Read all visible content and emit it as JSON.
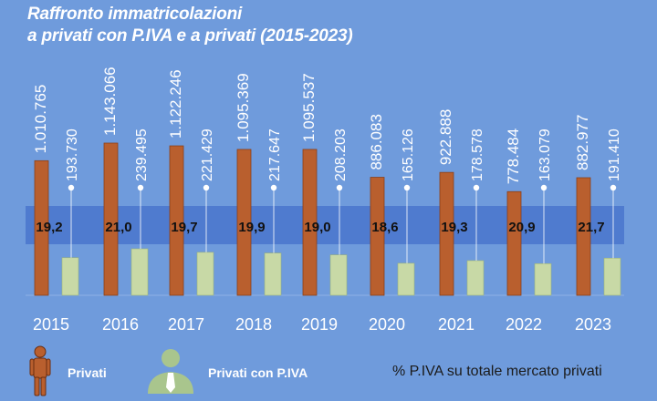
{
  "title": {
    "line1": "Raffronto immatricolazioni",
    "line2": "a privati con P.IVA e a privati (2015-2023)"
  },
  "colors": {
    "background": "#6f9bdc",
    "band": "#4f7bcf",
    "privati": "#b95f2e",
    "piva": "#c8d9a6",
    "avatar_piva": "#a9c58d",
    "text_white": "#ffffff",
    "text_dark": "#1b1b1b"
  },
  "chart_data": {
    "type": "bar",
    "title": "Raffronto immatricolazioni a privati con P.IVA e a privati (2015-2023)",
    "categories": [
      "2015",
      "2016",
      "2017",
      "2018",
      "2019",
      "2020",
      "2021",
      "2022",
      "2023"
    ],
    "series": [
      {
        "name": "Privati",
        "values": [
          1010765,
          1143066,
          1122246,
          1095369,
          1095537,
          886083,
          922888,
          778484,
          882977
        ],
        "labels": [
          "1.010.765",
          "1.143.066",
          "1.122.246",
          "1.095.369",
          "1.095.537",
          "886.083",
          "922.888",
          "778.484",
          "882.977"
        ]
      },
      {
        "name": "Privati con P.IVA",
        "values": [
          193730,
          239495,
          221429,
          217647,
          208203,
          165126,
          178578,
          163079,
          191410
        ],
        "labels": [
          "193.730",
          "239.495",
          "221.429",
          "217.647",
          "208.203",
          "165.126",
          "178.578",
          "163.079",
          "191.410"
        ]
      }
    ],
    "percent_series": {
      "name": "% P.IVA su totale mercato privati",
      "values": [
        19.2,
        21.0,
        19.7,
        19.9,
        19.0,
        18.6,
        19.3,
        20.9,
        21.7
      ],
      "labels": [
        "19,2",
        "21,0",
        "19,7",
        "19,9",
        "19,0",
        "18,6",
        "19,3",
        "20,9",
        "21,7"
      ]
    },
    "legend": {
      "privati": "Privati",
      "piva": "Privati con P.IVA",
      "percent": "% P.IVA su totale mercato privati"
    }
  }
}
